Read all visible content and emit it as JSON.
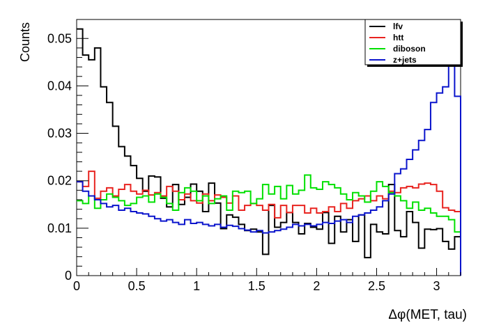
{
  "chart_data": {
    "type": "line",
    "style": "step-histogram",
    "xlabel": "Δφ(MET, tau)",
    "ylabel": "Counts",
    "xlim": [
      0,
      3.2
    ],
    "ylim": [
      0,
      0.054
    ],
    "grid": false,
    "legend_position": "top-right",
    "x_ticks": [
      0,
      0.5,
      1,
      1.5,
      2,
      2.5,
      3
    ],
    "x_tick_labels": [
      "0",
      "0.5",
      "1",
      "1.5",
      "2",
      "2.5",
      "3"
    ],
    "y_ticks": [
      0,
      0.01,
      0.02,
      0.03,
      0.04,
      0.05
    ],
    "y_tick_labels": [
      "0",
      "0.01",
      "0.02",
      "0.03",
      "0.04",
      "0.05"
    ],
    "bin_edges": [
      0,
      0.05,
      0.1,
      0.15,
      0.2,
      0.25,
      0.3,
      0.35,
      0.4,
      0.45,
      0.5,
      0.55,
      0.6,
      0.65,
      0.7,
      0.75,
      0.8,
      0.85,
      0.9,
      0.95,
      1.0,
      1.05,
      1.1,
      1.15,
      1.2,
      1.25,
      1.3,
      1.35,
      1.4,
      1.45,
      1.5,
      1.55,
      1.6,
      1.65,
      1.7,
      1.75,
      1.8,
      1.85,
      1.9,
      1.95,
      2.0,
      2.05,
      2.1,
      2.15,
      2.2,
      2.25,
      2.3,
      2.35,
      2.4,
      2.45,
      2.5,
      2.55,
      2.6,
      2.65,
      2.7,
      2.75,
      2.8,
      2.85,
      2.9,
      2.95,
      3.0,
      3.05,
      3.1,
      3.15,
      3.2
    ],
    "series": [
      {
        "name": "lfv",
        "color": "#000000",
        "values": [
          0.052,
          0.0465,
          0.0455,
          0.048,
          0.0398,
          0.0365,
          0.0315,
          0.0272,
          0.0252,
          0.0232,
          0.0205,
          0.0178,
          0.021,
          0.0208,
          0.0163,
          0.0145,
          0.0192,
          0.015,
          0.0165,
          0.0193,
          0.0178,
          0.0135,
          0.0195,
          0.0153,
          0.0099,
          0.0128,
          0.0123,
          0.0108,
          0.0095,
          0.0098,
          0.0092,
          0.0045,
          0.0148,
          0.0102,
          0.0112,
          0.0133,
          0.0112,
          0.0088,
          0.011,
          0.0102,
          0.0098,
          0.0133,
          0.0068,
          0.0125,
          0.0092,
          0.0118,
          0.0072,
          0.0128,
          0.0038,
          0.0108,
          0.0092,
          0.0088,
          0.0192,
          0.0095,
          0.0082,
          0.0135,
          0.0112,
          0.0058,
          0.0098,
          0.0097,
          0.0099,
          0.0072,
          0.0056,
          0.0082
        ]
      },
      {
        "name": "htt",
        "color": "#e8231f",
        "values": [
          0.0198,
          0.0188,
          0.022,
          0.0163,
          0.0178,
          0.0185,
          0.0168,
          0.0182,
          0.0192,
          0.0178,
          0.0172,
          0.018,
          0.017,
          0.0175,
          0.0168,
          0.0188,
          0.0178,
          0.016,
          0.0172,
          0.0158,
          0.0153,
          0.0172,
          0.0158,
          0.017,
          0.0165,
          0.0153,
          0.0168,
          0.0138,
          0.0148,
          0.0152,
          0.0148,
          0.0138,
          0.015,
          0.0122,
          0.0148,
          0.0133,
          0.0148,
          0.0148,
          0.0132,
          0.0142,
          0.0132,
          0.0135,
          0.0145,
          0.0135,
          0.0152,
          0.0142,
          0.0158,
          0.0162,
          0.0168,
          0.0158,
          0.0168,
          0.0162,
          0.0178,
          0.0175,
          0.0185,
          0.0188,
          0.0185,
          0.0193,
          0.0195,
          0.0192,
          0.0178,
          0.0143,
          0.0138,
          0.0135
        ]
      },
      {
        "name": "diboson",
        "color": "#00e000",
        "values": [
          0.0158,
          0.0152,
          0.0168,
          0.0142,
          0.016,
          0.0172,
          0.0165,
          0.0158,
          0.0148,
          0.0152,
          0.0165,
          0.0168,
          0.0155,
          0.0172,
          0.0165,
          0.0152,
          0.0138,
          0.0175,
          0.0185,
          0.0178,
          0.0158,
          0.0168,
          0.0152,
          0.0162,
          0.0168,
          0.0138,
          0.0178,
          0.0175,
          0.0178,
          0.0152,
          0.0162,
          0.0192,
          0.0172,
          0.0188,
          0.0162,
          0.019,
          0.0172,
          0.018,
          0.0212,
          0.0185,
          0.0182,
          0.0198,
          0.0192,
          0.0185,
          0.0172,
          0.016,
          0.0175,
          0.0168,
          0.0155,
          0.0178,
          0.0198,
          0.0188,
          0.0175,
          0.0168,
          0.0158,
          0.0142,
          0.0155,
          0.0138,
          0.0142,
          0.0132,
          0.0125,
          0.0125,
          0.0118,
          0.0092
        ]
      },
      {
        "name": "z+jets",
        "color": "#0a14cc",
        "values": [
          0.0198,
          0.0178,
          0.0168,
          0.016,
          0.0152,
          0.0145,
          0.0148,
          0.0138,
          0.0142,
          0.0135,
          0.0132,
          0.013,
          0.0125,
          0.012,
          0.0115,
          0.0118,
          0.0112,
          0.0108,
          0.0118,
          0.011,
          0.0112,
          0.0108,
          0.0105,
          0.0108,
          0.0102,
          0.0106,
          0.0104,
          0.0099,
          0.0096,
          0.0092,
          0.0095,
          0.009,
          0.0092,
          0.0095,
          0.0098,
          0.0102,
          0.0108,
          0.0105,
          0.0108,
          0.0105,
          0.0108,
          0.0112,
          0.011,
          0.0115,
          0.0118,
          0.0112,
          0.0125,
          0.0128,
          0.0132,
          0.0138,
          0.0145,
          0.0158,
          0.0172,
          0.0215,
          0.0225,
          0.0245,
          0.0265,
          0.0285,
          0.0308,
          0.0365,
          0.0385,
          0.0398,
          0.0452,
          0.0378
        ]
      }
    ]
  }
}
